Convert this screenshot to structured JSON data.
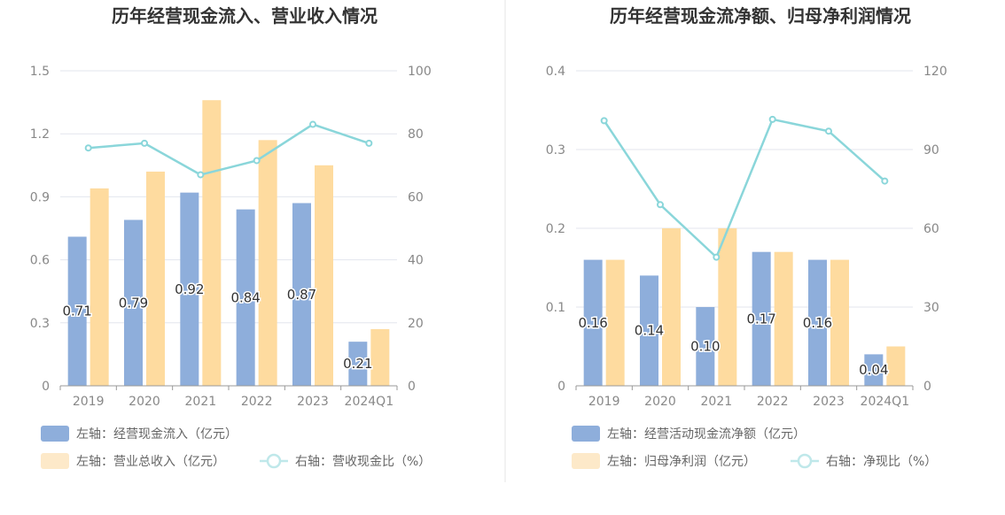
{
  "colors": {
    "cash_bar": "#8eaedb",
    "revenue_bar": "#fedb9f",
    "ratio_line": "#8ad6da",
    "legend_light_bar": "#fde9c9",
    "legend_light_line": "#bfe8ea",
    "grid": "#e3e6ee",
    "axis_text": "#888888",
    "title": "#333333",
    "divider": "#e6e6e6"
  },
  "chart_data": [
    {
      "type": "bar",
      "title": "历年经营现金流入、营业收入情况",
      "categories": [
        "2019",
        "2020",
        "2021",
        "2022",
        "2023",
        "2024Q1"
      ],
      "left_axis": {
        "ticks": [
          "0",
          "0.3",
          "0.6",
          "0.9",
          "1.2",
          "1.5"
        ],
        "ylim": [
          0,
          1.5
        ]
      },
      "right_axis": {
        "ticks": [
          "0",
          "20",
          "40",
          "60",
          "80",
          "100"
        ],
        "ylim": [
          0,
          100
        ]
      },
      "series": [
        {
          "name": "左轴：经营现金流入（亿元）",
          "kind": "bar",
          "axis": "left",
          "color": "#8eaedb",
          "values": [
            0.71,
            0.79,
            0.92,
            0.84,
            0.87,
            0.21
          ],
          "labels": [
            "0.71",
            "0.79",
            "0.92",
            "0.84",
            "0.87",
            "0.21"
          ]
        },
        {
          "name": "左轴：营业总收入（亿元）",
          "kind": "bar",
          "axis": "left",
          "color": "#fedb9f",
          "values": [
            0.94,
            1.02,
            1.36,
            1.17,
            1.05,
            0.27
          ]
        },
        {
          "name": "右轴：营收现金比（%）",
          "kind": "line",
          "axis": "right",
          "color": "#8ad6da",
          "values": [
            75.5,
            77,
            67,
            71.5,
            83,
            77
          ]
        }
      ],
      "legend": [
        {
          "text": "左轴：经营现金流入（亿元）",
          "symbol": "bar",
          "color": "#8eaedb"
        },
        {
          "text": "左轴：营业总收入（亿元）",
          "symbol": "bar",
          "color": "#fde9c9"
        },
        {
          "text": "右轴：营收现金比（%）",
          "symbol": "line",
          "color": "#bfe8ea"
        }
      ]
    },
    {
      "type": "bar",
      "title": "历年经营现金流净额、归母净利润情况",
      "categories": [
        "2019",
        "2020",
        "2021",
        "2022",
        "2023",
        "2024Q1"
      ],
      "left_axis": {
        "ticks": [
          "0",
          "0.1",
          "0.2",
          "0.3",
          "0.4"
        ],
        "ylim": [
          0,
          0.4
        ]
      },
      "right_axis": {
        "ticks": [
          "0",
          "30",
          "60",
          "90",
          "120"
        ],
        "ylim": [
          0,
          120
        ]
      },
      "series": [
        {
          "name": "左轴：经营活动现金流净额（亿元）",
          "kind": "bar",
          "axis": "left",
          "color": "#8eaedb",
          "values": [
            0.16,
            0.14,
            0.1,
            0.17,
            0.16,
            0.04
          ],
          "labels": [
            "0.16",
            "0.14",
            "0.10",
            "0.17",
            "0.16",
            "0.04"
          ]
        },
        {
          "name": "左轴：归母净利润（亿元）",
          "kind": "bar",
          "axis": "left",
          "color": "#fedb9f",
          "values": [
            0.16,
            0.2,
            0.2,
            0.17,
            0.16,
            0.05
          ]
        },
        {
          "name": "右轴：净现比（%）",
          "kind": "line",
          "axis": "right",
          "color": "#8ad6da",
          "values": [
            101,
            69,
            49,
            101.5,
            97,
            78
          ]
        }
      ],
      "legend": [
        {
          "text": "左轴：经营活动现金流净额（亿元）",
          "symbol": "bar",
          "color": "#8eaedb"
        },
        {
          "text": "左轴：归母净利润（亿元）",
          "symbol": "bar",
          "color": "#fde9c9"
        },
        {
          "text": "右轴：净现比（%）",
          "symbol": "line",
          "color": "#bfe8ea"
        }
      ]
    }
  ]
}
